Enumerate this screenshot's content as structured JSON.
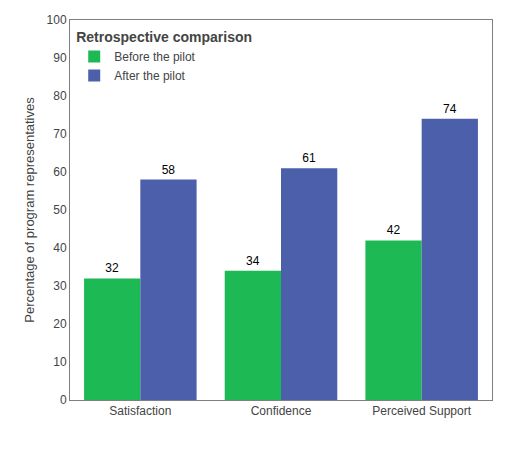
{
  "chart_data": {
    "type": "bar",
    "categories": [
      "Satisfaction",
      "Confidence",
      "Perceived Support"
    ],
    "series": [
      {
        "name": "Before the pilot",
        "color": "#1db954",
        "values": [
          32,
          34,
          42
        ]
      },
      {
        "name": "After the pilot",
        "color": "#4c5faa",
        "values": [
          58,
          61,
          74
        ]
      }
    ],
    "ylabel": "Percentage of program representatives",
    "ylim": [
      0,
      100
    ],
    "yticks": [
      0,
      10,
      20,
      30,
      40,
      50,
      60,
      70,
      80,
      90,
      100
    ],
    "legend_title": "Retrospective comparison",
    "legend": "upper left",
    "data_labels": true,
    "grid": false
  }
}
